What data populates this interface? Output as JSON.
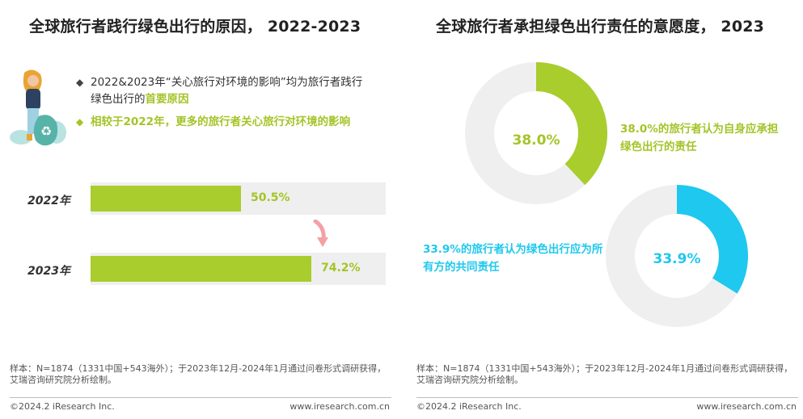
{
  "left": {
    "title": "全球旅行者践行绿色出行的原因， 2022-2023",
    "bullet1_mark": "◆",
    "bullet1_text": "2022&2023年“关心旅行对环境的影响”均为旅行者践行绿色出行的",
    "bullet1_highlight": "首要原因",
    "bullet2_mark": "◆",
    "bullet2_text": "相较于2022年，更多的旅行者关心旅行对环境的影响",
    "note": "样本：N=1874（1331中国+543海外）；于2023年12月-2024年1月通过问卷形式调研获得，艾瑞咨询研究院分析绘制。",
    "copyright": "©2024.2 iResearch Inc.",
    "website": "www.iresearch.com.cn"
  },
  "right": {
    "title": "全球旅行者承担绿色出行责任的意愿度， 2023",
    "note": "样本：N=1874（1331中国+543海外）；于2023年12月-2024年1月通过问卷形式调研获得，艾瑞咨询研究院分析绘制。",
    "copyright": "©2024.2 iResearch Inc.",
    "website": "www.iresearch.com.cn"
  },
  "colors": {
    "green": "#a8cd2c",
    "green_text": "#a4c428",
    "blue": "#1fc8ee",
    "track": "#efefef",
    "arrow": "#f3a0a6"
  },
  "chart_data": [
    {
      "type": "bar",
      "orientation": "horizontal",
      "title": "全球旅行者践行绿色出行的原因， 2022-2023",
      "categories": [
        "2022年",
        "2023年"
      ],
      "values": [
        50.5,
        74.2
      ],
      "value_labels": [
        "50.5%",
        "74.2%"
      ],
      "unit": "%",
      "xlim": [
        0,
        100
      ]
    },
    {
      "type": "pie",
      "style": "donut",
      "title": "全球旅行者承担绿色出行责任的意愿度， 2023",
      "charts": [
        {
          "value": 38.0,
          "label": "38.0%",
          "description": "38.0%的旅行者认为自身应承担绿色出行的责任",
          "color": "#a8cd2c"
        },
        {
          "value": 33.9,
          "label": "33.9%",
          "description": "33.9%的旅行者认为绿色出行应为所有方的共同责任",
          "color": "#1fc8ee"
        }
      ]
    }
  ]
}
